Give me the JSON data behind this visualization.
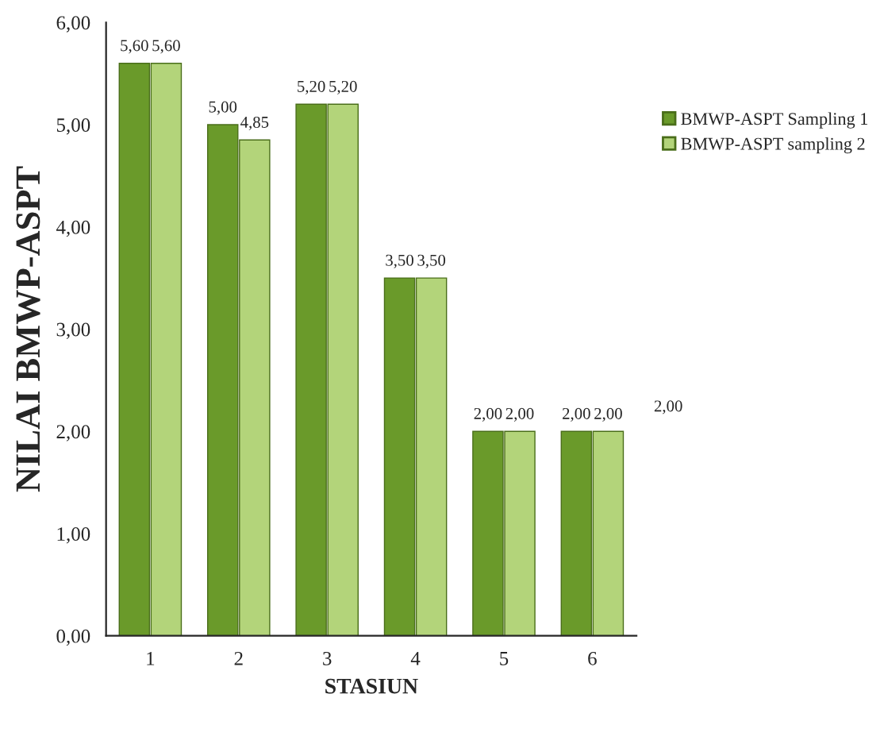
{
  "chart_data": {
    "type": "bar",
    "xlabel": "STASIUN",
    "ylabel": "NILAI BMWP-ASPT",
    "categories": [
      "1",
      "2",
      "3",
      "4",
      "5",
      "6"
    ],
    "series": [
      {
        "name": "BMWP-ASPT Sampling 1",
        "color": "#6a9a2a",
        "values": [
          5.6,
          5.0,
          5.2,
          3.5,
          2.0,
          2.0
        ],
        "value_labels": [
          "5,60",
          "5,00",
          "5,20",
          "3,50",
          "2,00",
          "2,00"
        ]
      },
      {
        "name": "BMWP-ASPT sampling 2",
        "color": "#b3d47a",
        "values": [
          5.6,
          4.85,
          5.2,
          3.5,
          2.0,
          2.0
        ],
        "value_labels": [
          "5,60",
          "4,85",
          "5,20",
          "3,50",
          "2,00",
          "2,00"
        ]
      }
    ],
    "ylim": [
      0,
      6
    ],
    "yticks": [
      {
        "value": 0,
        "label": "0,00"
      },
      {
        "value": 1,
        "label": "1,00"
      },
      {
        "value": 2,
        "label": "2,00"
      },
      {
        "value": 3,
        "label": "3,00"
      },
      {
        "value": 4,
        "label": "4,00"
      },
      {
        "value": 5,
        "label": "5,00"
      },
      {
        "value": 6,
        "label": "6,00"
      }
    ],
    "annotations": [
      "2,00"
    ],
    "legend": "right",
    "grid": false
  }
}
